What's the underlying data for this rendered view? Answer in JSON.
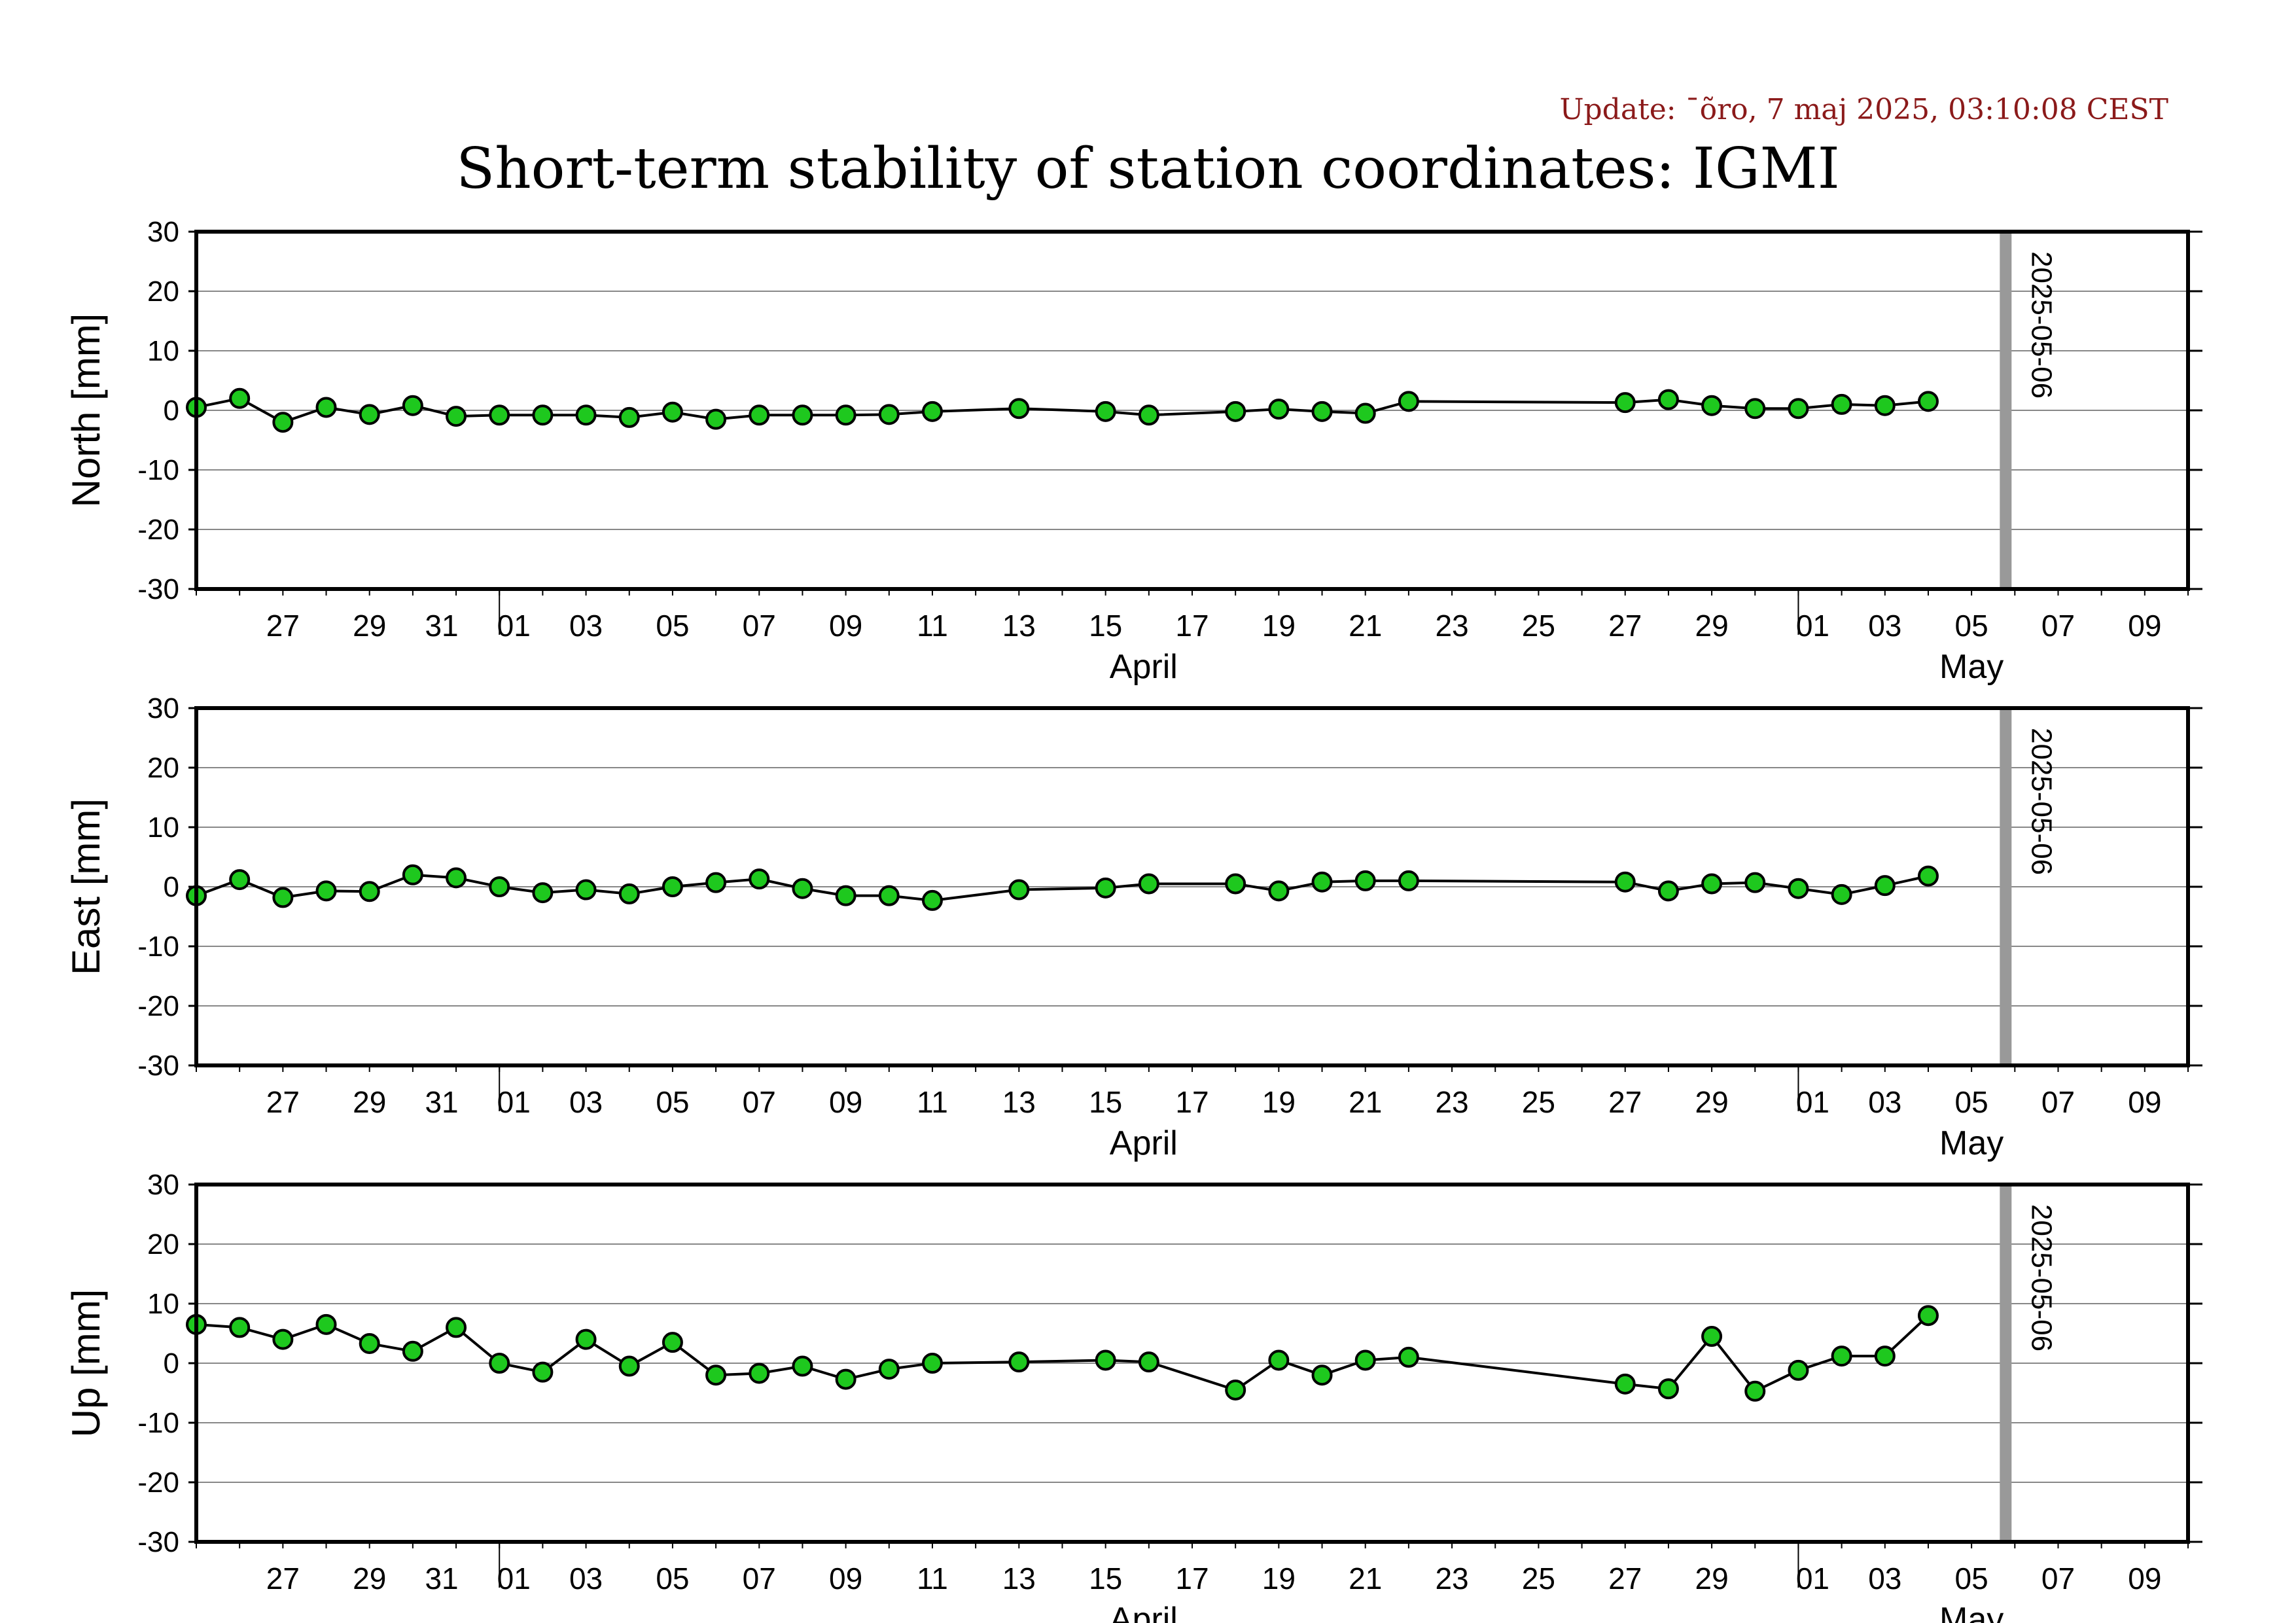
{
  "update_text": "Update: ¯õro, 7 maj 2025, 03:10:08 CEST",
  "chart_data": [
    {
      "type": "line",
      "title": "Short-term stability of station coordinates: IGMI",
      "ylabel": "North [mm]",
      "ylim": [
        -30,
        30
      ],
      "yticks": [
        -30,
        -20,
        -10,
        0,
        10,
        20,
        30
      ],
      "xlim": [
        "2025-03-25",
        "2025-05-10"
      ],
      "month_labels": [
        "April",
        "May"
      ],
      "x_tick_labels": [
        "27",
        "29",
        "31",
        "01",
        "03",
        "05",
        "07",
        "09",
        "11",
        "13",
        "15",
        "17",
        "19",
        "21",
        "23",
        "25",
        "27",
        "29",
        "01",
        "03",
        "05",
        "07",
        "09"
      ],
      "marker_line": "2025-05-06",
      "marker_label": "2025-05-06",
      "grid": true,
      "marker_color": "#1ec81e",
      "x": [
        "2025-03-25",
        "2025-03-26",
        "2025-03-27",
        "2025-03-28",
        "2025-03-29",
        "2025-03-30",
        "2025-03-31",
        "2025-04-01",
        "2025-04-02",
        "2025-04-03",
        "2025-04-04",
        "2025-04-05",
        "2025-04-06",
        "2025-04-07",
        "2025-04-08",
        "2025-04-09",
        "2025-04-10",
        "2025-04-11",
        "2025-04-13",
        "2025-04-15",
        "2025-04-16",
        "2025-04-18",
        "2025-04-19",
        "2025-04-20",
        "2025-04-21",
        "2025-04-22",
        "2025-04-27",
        "2025-04-28",
        "2025-04-29",
        "2025-04-30",
        "2025-05-01",
        "2025-05-02",
        "2025-05-03",
        "2025-05-04"
      ],
      "y": [
        0.5,
        2,
        -2,
        0.5,
        -0.7,
        0.8,
        -1,
        -0.8,
        -0.8,
        -0.8,
        -1.2,
        -0.3,
        -1.5,
        -0.8,
        -0.8,
        -0.8,
        -0.7,
        -0.2,
        0.3,
        -0.2,
        -0.8,
        -0.2,
        0.2,
        -0.2,
        -0.5,
        1.5,
        1.3,
        1.8,
        0.8,
        0.3,
        0.3,
        1,
        0.8,
        1.5
      ]
    },
    {
      "type": "line",
      "ylabel": "East [mm]",
      "ylim": [
        -30,
        30
      ],
      "yticks": [
        -30,
        -20,
        -10,
        0,
        10,
        20,
        30
      ],
      "xlim": [
        "2025-03-25",
        "2025-05-10"
      ],
      "month_labels": [
        "April",
        "May"
      ],
      "x_tick_labels": [
        "27",
        "29",
        "31",
        "01",
        "03",
        "05",
        "07",
        "09",
        "11",
        "13",
        "15",
        "17",
        "19",
        "21",
        "23",
        "25",
        "27",
        "29",
        "01",
        "03",
        "05",
        "07",
        "09"
      ],
      "marker_line": "2025-05-06",
      "marker_label": "2025-05-06",
      "grid": true,
      "marker_color": "#1ec81e",
      "x": [
        "2025-03-25",
        "2025-03-26",
        "2025-03-27",
        "2025-03-28",
        "2025-03-29",
        "2025-03-30",
        "2025-03-31",
        "2025-04-01",
        "2025-04-02",
        "2025-04-03",
        "2025-04-04",
        "2025-04-05",
        "2025-04-06",
        "2025-04-07",
        "2025-04-08",
        "2025-04-09",
        "2025-04-10",
        "2025-04-11",
        "2025-04-13",
        "2025-04-15",
        "2025-04-16",
        "2025-04-18",
        "2025-04-19",
        "2025-04-20",
        "2025-04-21",
        "2025-04-22",
        "2025-04-27",
        "2025-04-28",
        "2025-04-29",
        "2025-04-30",
        "2025-05-01",
        "2025-05-02",
        "2025-05-03",
        "2025-05-04"
      ],
      "y": [
        -1.5,
        1.2,
        -1.8,
        -0.7,
        -0.8,
        2,
        1.5,
        0,
        -1,
        -0.5,
        -1.2,
        0,
        0.7,
        1.3,
        -0.3,
        -1.5,
        -1.5,
        -2.3,
        -0.5,
        -0.2,
        0.5,
        0.5,
        -0.7,
        0.8,
        1,
        1,
        0.8,
        -0.7,
        0.5,
        0.7,
        -0.3,
        -1.3,
        0.2,
        1.8
      ]
    },
    {
      "type": "line",
      "ylabel": "Up [mm]",
      "ylim": [
        -30,
        30
      ],
      "yticks": [
        -30,
        -20,
        -10,
        0,
        10,
        20,
        30
      ],
      "xlim": [
        "2025-03-25",
        "2025-05-10"
      ],
      "month_labels": [
        "April",
        "May"
      ],
      "x_tick_labels": [
        "27",
        "29",
        "31",
        "01",
        "03",
        "05",
        "07",
        "09",
        "11",
        "13",
        "15",
        "17",
        "19",
        "21",
        "23",
        "25",
        "27",
        "29",
        "01",
        "03",
        "05",
        "07",
        "09"
      ],
      "marker_line": "2025-05-06",
      "marker_label": "2025-05-06",
      "grid": true,
      "marker_color": "#1ec81e",
      "x": [
        "2025-03-25",
        "2025-03-26",
        "2025-03-27",
        "2025-03-28",
        "2025-03-29",
        "2025-03-30",
        "2025-03-31",
        "2025-04-01",
        "2025-04-02",
        "2025-04-03",
        "2025-04-04",
        "2025-04-05",
        "2025-04-06",
        "2025-04-07",
        "2025-04-08",
        "2025-04-09",
        "2025-04-10",
        "2025-04-11",
        "2025-04-13",
        "2025-04-15",
        "2025-04-16",
        "2025-04-18",
        "2025-04-19",
        "2025-04-20",
        "2025-04-21",
        "2025-04-22",
        "2025-04-27",
        "2025-04-28",
        "2025-04-29",
        "2025-04-30",
        "2025-05-01",
        "2025-05-02",
        "2025-05-03",
        "2025-05-04"
      ],
      "y": [
        6.5,
        6,
        4,
        6.5,
        3.3,
        2,
        6,
        0,
        -1.5,
        4,
        -0.5,
        3.5,
        -2,
        -1.7,
        -0.5,
        -2.7,
        -1,
        0,
        0.2,
        0.5,
        0.2,
        -4.5,
        0.5,
        -2,
        0.5,
        1,
        -3.5,
        -4.3,
        4.5,
        -4.7,
        -1.2,
        1.2,
        1.2,
        8
      ]
    }
  ]
}
